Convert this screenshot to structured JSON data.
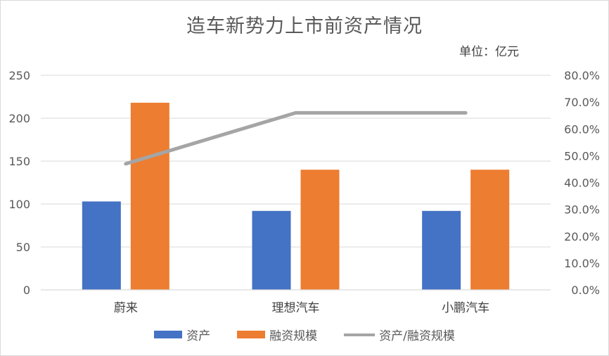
{
  "chart_data": {
    "type": "bar",
    "title": "造车新势力上市前资产情况",
    "unit_label": "单位：亿元",
    "categories": [
      "蔚来",
      "理想汽车",
      "小鹏汽车"
    ],
    "series": [
      {
        "name": "资产",
        "type": "bar",
        "axis": "left",
        "color": "#4472c4",
        "values": [
          103,
          92,
          92
        ]
      },
      {
        "name": "融资规模",
        "type": "bar",
        "axis": "left",
        "color": "#ed7d31",
        "values": [
          218,
          140,
          140
        ]
      },
      {
        "name": "资产/融资规模",
        "type": "line",
        "axis": "right",
        "color": "#a5a5a5",
        "values": [
          0.47,
          0.66,
          0.66
        ]
      }
    ],
    "y_left": {
      "min": 0,
      "max": 250,
      "ticks": [
        "0",
        "50",
        "100",
        "150",
        "200",
        "250"
      ],
      "tick_values": [
        0,
        50,
        100,
        150,
        200,
        250
      ]
    },
    "y_right": {
      "min": 0,
      "max": 0.8,
      "ticks": [
        "0.0%",
        "10.0%",
        "20.0%",
        "30.0%",
        "40.0%",
        "50.0%",
        "60.0%",
        "70.0%",
        "80.0%"
      ],
      "tick_values": [
        0,
        0.1,
        0.2,
        0.3,
        0.4,
        0.5,
        0.6,
        0.7,
        0.8
      ]
    },
    "grid": true,
    "legend_position": "bottom"
  }
}
